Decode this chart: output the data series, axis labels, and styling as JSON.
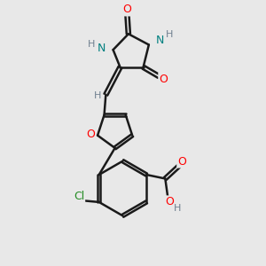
{
  "background_color": "#e8e8e8",
  "bond_color": "#1a1a1a",
  "atom_colors": {
    "N": "#008080",
    "O": "#ff0000",
    "Cl": "#228b22",
    "H": "#708090",
    "C": "#1a1a1a"
  },
  "bond_width": 1.8,
  "dbo": 0.08,
  "font_size": 9,
  "fig_size": [
    3.0,
    3.0
  ],
  "dpi": 100
}
